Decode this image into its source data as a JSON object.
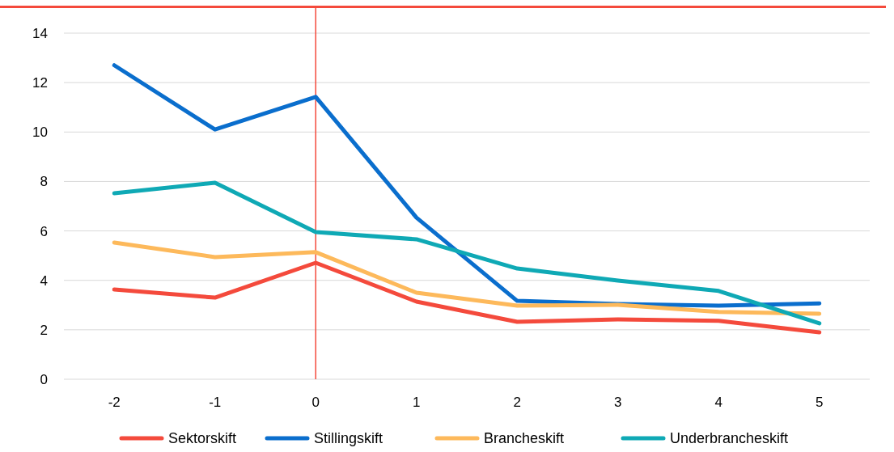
{
  "chart_data": {
    "type": "line",
    "x": [
      -2,
      -1,
      0,
      1,
      2,
      3,
      4,
      5
    ],
    "xlim": [
      -2.5,
      5.5
    ],
    "xticks": [
      -2,
      -1,
      0,
      1,
      2,
      3,
      4,
      5
    ],
    "ylim": [
      0,
      14
    ],
    "yticks": [
      0,
      2,
      4,
      6,
      8,
      10,
      12,
      14
    ],
    "grid": "y",
    "legend": "bottom",
    "marker": "none",
    "line_style": "solid",
    "series": [
      {
        "name": "Sektorskift",
        "color": "#f44a3c",
        "values": [
          3.63,
          3.3,
          4.71,
          3.14,
          2.32,
          2.42,
          2.36,
          1.9
        ]
      },
      {
        "name": "Stillingskift",
        "color": "#0a6ecd",
        "values": [
          12.7,
          10.1,
          11.42,
          6.54,
          3.17,
          3.04,
          2.98,
          3.07
        ]
      },
      {
        "name": "Brancheskift",
        "color": "#fdb95b",
        "values": [
          5.53,
          4.94,
          5.14,
          3.5,
          2.98,
          3.01,
          2.72,
          2.65
        ]
      },
      {
        "name": "Underbrancheskift",
        "color": "#0fa9b5",
        "values": [
          7.52,
          7.95,
          5.95,
          5.66,
          4.48,
          3.99,
          3.57,
          2.26
        ]
      }
    ],
    "ref_lines": [
      {
        "axis": "x",
        "value": 0,
        "color": "#f44a3c"
      }
    ]
  }
}
